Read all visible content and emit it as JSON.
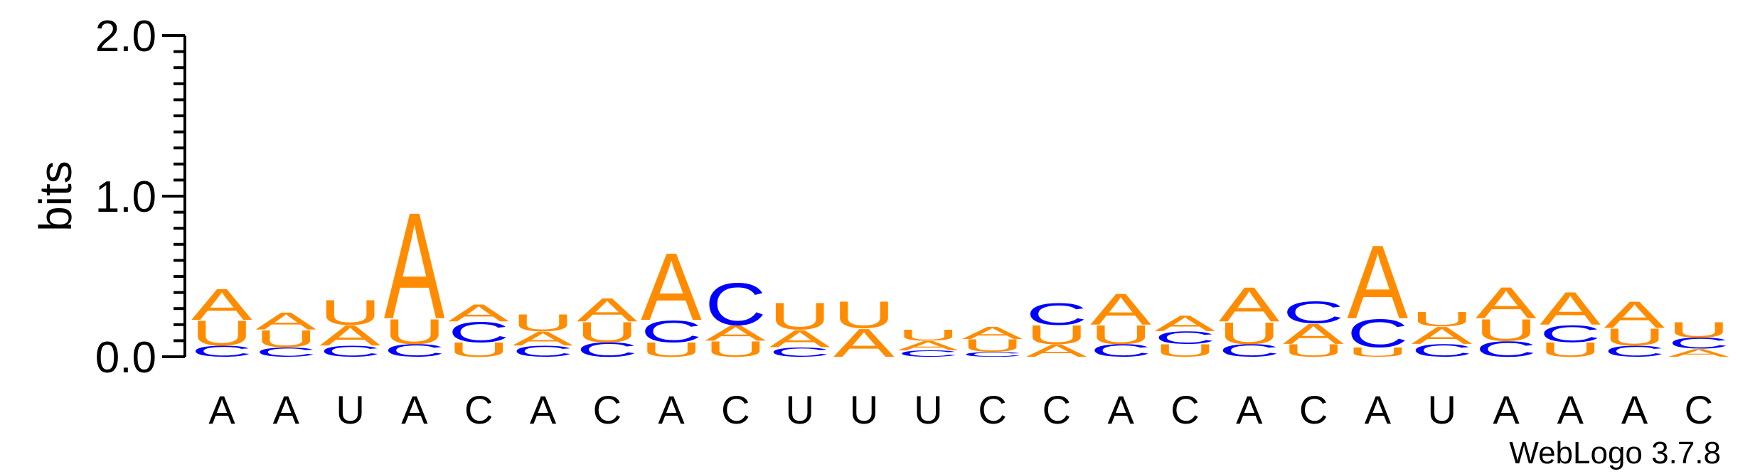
{
  "chart_data": {
    "type": "sequence-logo",
    "ylabel": "bits",
    "ylim": [
      0,
      2.0
    ],
    "yticks": [
      "0.0",
      "1.0",
      "2.0"
    ],
    "minor_tick_step": 0.1,
    "credit": "WebLogo 3.7.8",
    "colors": {
      "A": "#ff8c00",
      "U": "#ff8c00",
      "C": "#0000ff",
      "G": "#0000ff"
    },
    "positions": [
      {
        "label": "A",
        "stack": [
          {
            "l": "C",
            "h": 0.07
          },
          {
            "l": "U",
            "h": 0.16
          },
          {
            "l": "A",
            "h": 0.2
          }
        ]
      },
      {
        "label": "A",
        "stack": [
          {
            "l": "C",
            "h": 0.06
          },
          {
            "l": "U",
            "h": 0.11
          },
          {
            "l": "A",
            "h": 0.11
          }
        ]
      },
      {
        "label": "U",
        "stack": [
          {
            "l": "C",
            "h": 0.07
          },
          {
            "l": "A",
            "h": 0.13
          },
          {
            "l": "U",
            "h": 0.16
          }
        ]
      },
      {
        "label": "A",
        "stack": [
          {
            "l": "C",
            "h": 0.08
          },
          {
            "l": "U",
            "h": 0.16
          },
          {
            "l": "A",
            "h": 0.68
          }
        ]
      },
      {
        "label": "C",
        "stack": [
          {
            "l": "U",
            "h": 0.09
          },
          {
            "l": "C",
            "h": 0.13
          },
          {
            "l": "A",
            "h": 0.11
          }
        ]
      },
      {
        "label": "A",
        "stack": [
          {
            "l": "C",
            "h": 0.07
          },
          {
            "l": "A",
            "h": 0.09
          },
          {
            "l": "U",
            "h": 0.11
          }
        ]
      },
      {
        "label": "C",
        "stack": [
          {
            "l": "C",
            "h": 0.09
          },
          {
            "l": "U",
            "h": 0.13
          },
          {
            "l": "A",
            "h": 0.15
          }
        ]
      },
      {
        "label": "A",
        "stack": [
          {
            "l": "U",
            "h": 0.09
          },
          {
            "l": "C",
            "h": 0.14
          },
          {
            "l": "A",
            "h": 0.43
          }
        ]
      },
      {
        "label": "C",
        "stack": [
          {
            "l": "U",
            "h": 0.1
          },
          {
            "l": "A",
            "h": 0.1
          },
          {
            "l": "C",
            "h": 0.27
          }
        ]
      },
      {
        "label": "U",
        "stack": [
          {
            "l": "C",
            "h": 0.06
          },
          {
            "l": "A",
            "h": 0.11
          },
          {
            "l": "U",
            "h": 0.17
          }
        ]
      },
      {
        "label": "U",
        "stack": [
          {
            "l": "A",
            "h": 0.18
          },
          {
            "l": "U",
            "h": 0.17
          }
        ]
      },
      {
        "label": "U",
        "stack": [
          {
            "l": "C",
            "h": 0.04
          },
          {
            "l": "A",
            "h": 0.06
          },
          {
            "l": "U",
            "h": 0.07
          }
        ]
      },
      {
        "label": "C",
        "stack": [
          {
            "l": "C",
            "h": 0.03
          },
          {
            "l": "U",
            "h": 0.08
          },
          {
            "l": "A",
            "h": 0.08
          }
        ]
      },
      {
        "label": "C",
        "stack": [
          {
            "l": "A",
            "h": 0.08
          },
          {
            "l": "U",
            "h": 0.12
          },
          {
            "l": "C",
            "h": 0.14
          }
        ]
      },
      {
        "label": "A",
        "stack": [
          {
            "l": "C",
            "h": 0.08
          },
          {
            "l": "U",
            "h": 0.12
          },
          {
            "l": "A",
            "h": 0.2
          }
        ]
      },
      {
        "label": "C",
        "stack": [
          {
            "l": "U",
            "h": 0.08
          },
          {
            "l": "C",
            "h": 0.08
          },
          {
            "l": "A",
            "h": 0.1
          }
        ]
      },
      {
        "label": "A",
        "stack": [
          {
            "l": "C",
            "h": 0.08
          },
          {
            "l": "U",
            "h": 0.14
          },
          {
            "l": "A",
            "h": 0.22
          }
        ]
      },
      {
        "label": "C",
        "stack": [
          {
            "l": "U",
            "h": 0.08
          },
          {
            "l": "A",
            "h": 0.13
          },
          {
            "l": "C",
            "h": 0.14
          }
        ]
      },
      {
        "label": "A",
        "stack": [
          {
            "l": "U",
            "h": 0.06
          },
          {
            "l": "C",
            "h": 0.18
          },
          {
            "l": "A",
            "h": 0.47
          }
        ]
      },
      {
        "label": "U",
        "stack": [
          {
            "l": "C",
            "h": 0.08
          },
          {
            "l": "A",
            "h": 0.11
          },
          {
            "l": "U",
            "h": 0.09
          }
        ]
      },
      {
        "label": "A",
        "stack": [
          {
            "l": "C",
            "h": 0.1
          },
          {
            "l": "U",
            "h": 0.14
          },
          {
            "l": "A",
            "h": 0.2
          }
        ]
      },
      {
        "label": "A",
        "stack": [
          {
            "l": "U",
            "h": 0.09
          },
          {
            "l": "C",
            "h": 0.11
          },
          {
            "l": "A",
            "h": 0.21
          }
        ]
      },
      {
        "label": "A",
        "stack": [
          {
            "l": "C",
            "h": 0.07
          },
          {
            "l": "U",
            "h": 0.11
          },
          {
            "l": "A",
            "h": 0.17
          }
        ]
      },
      {
        "label": "C",
        "stack": [
          {
            "l": "A",
            "h": 0.05
          },
          {
            "l": "C",
            "h": 0.07
          },
          {
            "l": "U",
            "h": 0.1
          }
        ]
      }
    ]
  }
}
